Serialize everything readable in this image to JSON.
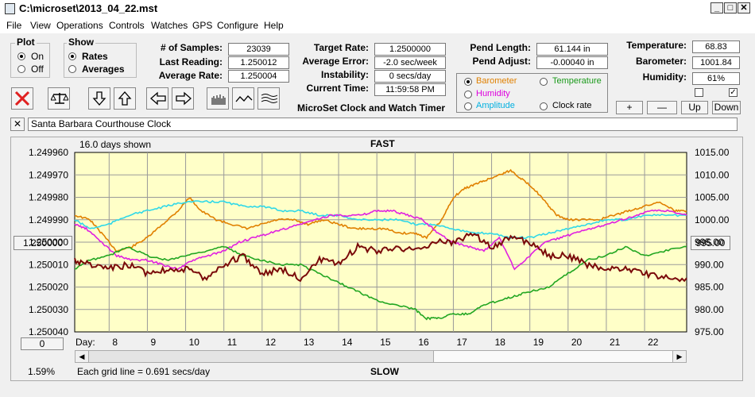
{
  "window": {
    "title": "C:\\microset\\2013_04_22.mst",
    "minimize": "_",
    "maximize": "□",
    "close": "✕"
  },
  "menu": [
    "File",
    "View",
    "Operations",
    "Controls",
    "Watches",
    "GPS",
    "Configure",
    "Help"
  ],
  "plot_group": {
    "title": "Plot",
    "options": [
      "On",
      "Off"
    ],
    "selected": 0
  },
  "show_group": {
    "title": "Show",
    "options": [
      "Rates",
      "Averages"
    ],
    "selected": 0
  },
  "stats": [
    {
      "label": "# of Samples:",
      "value": "23039"
    },
    {
      "label": "Last Reading:",
      "value": "1.250012"
    },
    {
      "label": "Average Rate:",
      "value": "1.250004"
    }
  ],
  "rate": [
    {
      "label": "Target Rate:",
      "value": "1.2500000"
    },
    {
      "label": "Average Error:",
      "value": "-2.0 sec/week"
    },
    {
      "label": "Instability:",
      "value": "0 secs/day"
    },
    {
      "label": "Current Time:",
      "value": "11:59:58 PM"
    }
  ],
  "app_caption": "MicroSet Clock and Watch Timer",
  "pend": [
    {
      "label": "Pend Length:",
      "value": "61.144 in"
    },
    {
      "label": "Pend Adjust:",
      "value": "-0.00040 in"
    }
  ],
  "env": [
    {
      "label": "Temperature:",
      "value": "68.83"
    },
    {
      "label": "Barometer:",
      "value": "1001.84"
    },
    {
      "label": "Humidity:",
      "value": "61%"
    }
  ],
  "sensor_options": [
    {
      "label": "Barometer",
      "color": "#e08000",
      "selected": true
    },
    {
      "label": "Temperature",
      "color": "#1a9a1a",
      "selected": false
    },
    {
      "label": "Humidity",
      "color": "#dd00dd",
      "selected": false
    },
    {
      "label": "Clock rate",
      "color": "#000000",
      "selected": false
    },
    {
      "label": "Amplitude",
      "color": "#00b0e0",
      "selected": false
    }
  ],
  "env_checks": [
    false,
    true
  ],
  "axis_buttons": [
    "+",
    "—",
    "Up",
    "Down"
  ],
  "name_field": {
    "close": "✕",
    "value": "Santa Barbara Courthouse Clock"
  },
  "plot": {
    "days_shown": "16.0 days shown",
    "fast_label": "FAST",
    "slow_label": "SLOW",
    "center_button": "1.250000",
    "right_button": "995.00",
    "bottom_button": "0",
    "day_label": "Day:",
    "percent": "1.59%",
    "grid_note": "Each grid line = 0.691 secs/day"
  },
  "chart_data": {
    "type": "line",
    "x_label": "Day:",
    "x_ticks": [
      "8",
      "9",
      "10",
      "11",
      "12",
      "13",
      "14",
      "15",
      "16",
      "17",
      "18",
      "19",
      "20",
      "21",
      "22"
    ],
    "x_range": [
      7.1,
      23.1
    ],
    "y_left_ticks": [
      "1.249960",
      "1.249970",
      "1.249980",
      "1.249990",
      "1.250000",
      "1.250010",
      "1.250020",
      "1.250030",
      "1.250040"
    ],
    "y_left_range": [
      1.24996,
      1.25004
    ],
    "y_left_inverted": true,
    "y_right_ticks": [
      "1015.00",
      "1010.00",
      "1005.00",
      "1000.00",
      "995.00",
      "990.00",
      "985.00",
      "980.00",
      "975.00"
    ],
    "y_right_range": [
      975,
      1015
    ],
    "series": [
      {
        "color": "#e08000",
        "axis": "right",
        "x": [
          7.1,
          7.5,
          7.8,
          8.2,
          8.6,
          9.0,
          9.4,
          9.8,
          10.1,
          10.4,
          10.8,
          11.2,
          11.6,
          12.0,
          12.4,
          12.8,
          13.2,
          13.6,
          14.0,
          14.4,
          14.8,
          15.2,
          15.6,
          16.0,
          16.3,
          16.7,
          17.0,
          17.3,
          17.6,
          17.9,
          18.2,
          18.5,
          18.8,
          19.1,
          19.4,
          19.7,
          20.0,
          20.4,
          20.8,
          21.2,
          21.6,
          22.0,
          22.4,
          22.8,
          23.1
        ],
        "y": [
          1001,
          1000,
          997,
          993,
          994,
          996,
          999,
          1002,
          1005,
          1002,
          1000,
          999,
          998,
          999,
          1000,
          1000,
          999,
          1000,
          999,
          998,
          998,
          998,
          997,
          997,
          996,
          1000,
          1005,
          1007,
          1008,
          1009,
          1010,
          1011,
          1009,
          1007,
          1004,
          1001,
          1000,
          1000,
          1000,
          1001,
          1002,
          1003,
          1004,
          1002,
          1002
        ]
      },
      {
        "color": "#2fd8e8",
        "axis": "right",
        "x": [
          7.1,
          7.5,
          8.0,
          8.5,
          9.0,
          9.5,
          10.0,
          10.5,
          11.0,
          11.5,
          12.0,
          12.5,
          13.0,
          13.5,
          14.0,
          14.5,
          15.0,
          15.5,
          16.0,
          16.5,
          17.0,
          17.5,
          18.0,
          18.5,
          19.0,
          19.5,
          20.0,
          20.5,
          21.0,
          21.5,
          22.0,
          22.5,
          23.1
        ],
        "y": [
          1000,
          998,
          999,
          1001,
          1002,
          1003,
          1004,
          1004,
          1004,
          1003,
          1003,
          1002,
          1002,
          1001,
          1001,
          1000,
          1000,
          1000,
          999,
          999,
          998,
          997,
          997,
          996,
          996,
          997,
          998,
          999,
          1000,
          1000,
          1001,
          1001,
          1001
        ]
      },
      {
        "color": "#e020e0",
        "axis": "right",
        "x": [
          7.1,
          7.4,
          7.8,
          8.2,
          8.6,
          9.0,
          9.4,
          9.8,
          10.2,
          10.6,
          11.0,
          11.4,
          11.8,
          12.2,
          12.6,
          13.0,
          13.4,
          13.8,
          14.2,
          14.6,
          15.0,
          15.4,
          15.8,
          16.2,
          16.6,
          17.0,
          17.4,
          17.8,
          18.2,
          18.6,
          19.0,
          19.4,
          19.8,
          20.2,
          20.6,
          21.0,
          21.4,
          21.8,
          22.2,
          22.6,
          23.1
        ],
        "y": [
          999,
          998,
          995,
          992,
          991,
          991,
          990,
          989,
          991,
          992,
          993,
          995,
          996,
          997,
          998,
          999,
          1000,
          1001,
          1001,
          1001,
          1002,
          1002,
          1001,
          1000,
          997,
          995,
          994,
          993,
          996,
          989,
          992,
          995,
          996,
          997,
          998,
          999,
          1000,
          1001,
          1002,
          1002,
          1001
        ]
      },
      {
        "color": "#22a622",
        "axis": "right",
        "x": [
          7.1,
          7.5,
          8.0,
          8.5,
          9.0,
          9.5,
          10.0,
          10.5,
          11.0,
          11.5,
          12.0,
          12.5,
          13.0,
          13.5,
          14.0,
          14.5,
          15.0,
          15.5,
          16.0,
          16.3,
          16.6,
          17.0,
          17.4,
          17.8,
          18.2,
          18.6,
          19.0,
          19.5,
          20.0,
          20.5,
          21.0,
          21.5,
          22.0,
          22.5,
          23.1
        ],
        "y": [
          989,
          991,
          992,
          994,
          992,
          991,
          992,
          993,
          994,
          992,
          991,
          990,
          990,
          988,
          986,
          984,
          982,
          981,
          980,
          978,
          978,
          979,
          979,
          981,
          982,
          983,
          984,
          985,
          988,
          991,
          992,
          994,
          992,
          993,
          994
        ]
      },
      {
        "color": "#7a0a0a",
        "axis": "left",
        "x": [
          7.1,
          7.5,
          8.0,
          8.5,
          9.0,
          9.5,
          10.0,
          10.5,
          11.0,
          11.5,
          12.0,
          12.5,
          13.0,
          13.5,
          14.0,
          14.5,
          15.0,
          15.5,
          16.0,
          16.5,
          17.0,
          17.5,
          18.0,
          18.5,
          19.0,
          19.5,
          20.0,
          20.5,
          21.0,
          21.5,
          22.0,
          22.5,
          23.1
        ],
        "y": [
          1.250008,
          1.25001,
          1.250012,
          1.25001,
          1.250014,
          1.250012,
          1.250012,
          1.250016,
          1.25001,
          1.250006,
          1.250014,
          1.250012,
          1.250016,
          1.250008,
          1.25001,
          1.250002,
          1.250004,
          1.250002,
          1.250004,
          1.25,
          1.25,
          1.249996,
          1.250002,
          1.249998,
          1.25,
          1.250006,
          1.250006,
          1.25001,
          1.250012,
          1.250012,
          1.250014,
          1.250016,
          1.250016
        ]
      }
    ]
  }
}
